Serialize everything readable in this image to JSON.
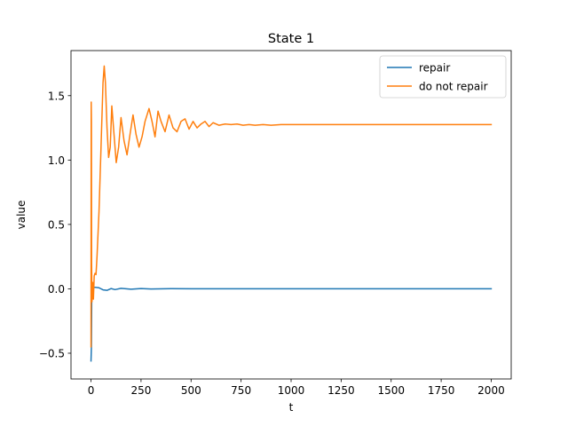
{
  "chart_data": {
    "type": "line",
    "title": "State 1",
    "xlabel": "t",
    "ylabel": "value",
    "xlim": [
      -100,
      2100
    ],
    "ylim": [
      -0.7,
      1.85
    ],
    "xticks": [
      0,
      250,
      500,
      750,
      1000,
      1250,
      1500,
      1750,
      2000
    ],
    "yticks": [
      -0.5,
      0.0,
      0.5,
      1.0,
      1.5
    ],
    "xtick_labels": [
      "0",
      "250",
      "500",
      "750",
      "1000",
      "1250",
      "1500",
      "1750",
      "2000"
    ],
    "ytick_labels": [
      "−0.5",
      "0.0",
      "0.5",
      "1.0",
      "1.5"
    ],
    "grid": false,
    "legend_position": "top-right",
    "series": [
      {
        "name": "repair",
        "color": "#1f77b4",
        "x": [
          0,
          2,
          4,
          6,
          10,
          20,
          40,
          60,
          80,
          100,
          120,
          150,
          200,
          250,
          300,
          400,
          500,
          700,
          1000,
          1500,
          2000
        ],
        "y": [
          -0.56,
          -0.45,
          0.02,
          0.015,
          0.01,
          0.012,
          0.008,
          -0.008,
          -0.012,
          0.002,
          -0.006,
          0.004,
          -0.003,
          0.002,
          -0.001,
          0.001,
          0.0,
          0.0,
          0.0,
          0.0,
          0.0
        ]
      },
      {
        "name": "do not repair",
        "color": "#ff7f0e",
        "x": [
          0,
          1,
          2,
          3,
          5,
          8,
          12,
          16,
          20,
          25,
          30,
          40,
          50,
          60,
          66,
          72,
          80,
          88,
          96,
          104,
          115,
          126,
          138,
          150,
          165,
          180,
          195,
          210,
          225,
          240,
          255,
          270,
          290,
          305,
          320,
          335,
          350,
          370,
          390,
          410,
          430,
          450,
          470,
          490,
          510,
          530,
          550,
          570,
          590,
          610,
          640,
          670,
          700,
          730,
          760,
          790,
          820,
          860,
          900,
          950,
          1000,
          1100,
          1250,
          1500,
          1750,
          2000
        ],
        "y": [
          -0.45,
          1.45,
          1.3,
          0.2,
          -0.1,
          0.05,
          -0.08,
          0.1,
          0.12,
          0.11,
          0.25,
          0.6,
          1.1,
          1.6,
          1.73,
          1.6,
          1.25,
          1.02,
          1.1,
          1.42,
          1.2,
          0.98,
          1.1,
          1.33,
          1.15,
          1.04,
          1.2,
          1.35,
          1.2,
          1.1,
          1.18,
          1.3,
          1.4,
          1.3,
          1.18,
          1.38,
          1.3,
          1.22,
          1.35,
          1.25,
          1.22,
          1.3,
          1.32,
          1.24,
          1.3,
          1.25,
          1.28,
          1.3,
          1.26,
          1.29,
          1.27,
          1.28,
          1.275,
          1.28,
          1.27,
          1.275,
          1.27,
          1.275,
          1.27,
          1.275,
          1.275,
          1.275,
          1.275,
          1.275,
          1.275,
          1.275
        ]
      }
    ]
  }
}
